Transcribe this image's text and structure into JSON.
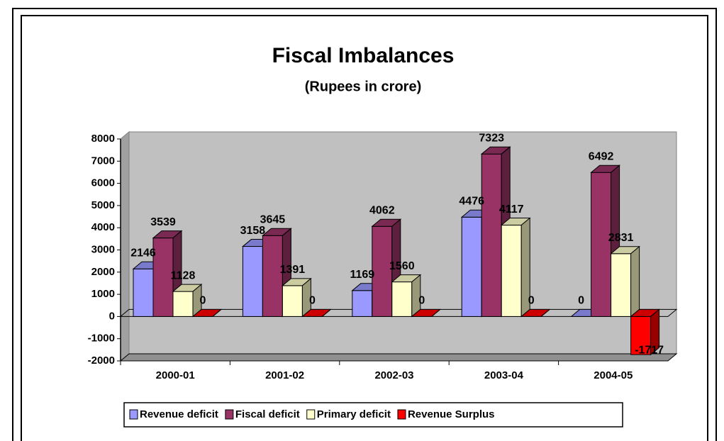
{
  "chart_data": {
    "type": "bar3d",
    "title": "Fiscal Imbalances",
    "subtitle": "(Rupees in crore)",
    "categories": [
      "2000-01",
      "2001-02",
      "2002-03",
      "2003-04",
      "2004-05"
    ],
    "series": [
      {
        "name": "Revenue deficit",
        "color": "#9999ff",
        "values": [
          2146,
          3158,
          1169,
          4476,
          0
        ]
      },
      {
        "name": "Fiscal deficit",
        "color": "#993366",
        "values": [
          3539,
          3645,
          4062,
          7323,
          6492
        ]
      },
      {
        "name": "Primary deficit",
        "color": "#ffffcc",
        "values": [
          1128,
          1391,
          1560,
          4117,
          2831
        ]
      },
      {
        "name": "Revenue Surplus",
        "color": "#ff0000",
        "values": [
          0,
          0,
          0,
          0,
          -1717
        ]
      }
    ],
    "ylim": [
      -2000,
      8000
    ],
    "yticks": [
      -2000,
      -1000,
      0,
      1000,
      2000,
      3000,
      4000,
      5000,
      6000,
      7000,
      8000
    ],
    "legend": "bottom"
  }
}
